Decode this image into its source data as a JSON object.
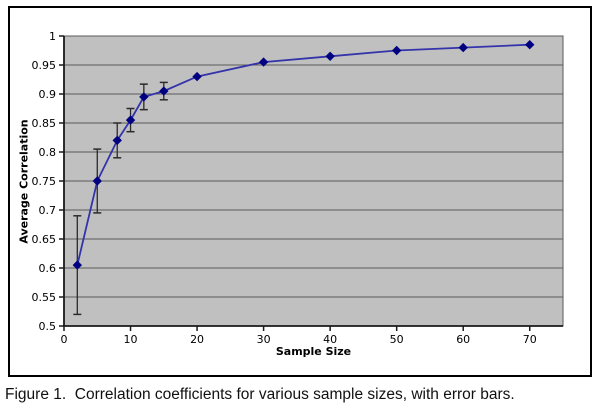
{
  "figure": {
    "caption": "Figure 1.  Correlation coefficients for various sample sizes, with error bars."
  },
  "chart_data": {
    "type": "line",
    "title": "",
    "xlabel": "Sample Size",
    "ylabel": "Average Correlation",
    "xlim": [
      0,
      75
    ],
    "ylim": [
      0.5,
      1.0
    ],
    "x_ticks": [
      0,
      10,
      20,
      30,
      40,
      50,
      60,
      70
    ],
    "y_ticks": [
      0.5,
      0.55,
      0.6,
      0.65,
      0.7,
      0.75,
      0.8,
      0.85,
      0.9,
      0.95,
      1
    ],
    "y_tick_labels": [
      "0.5",
      "0.55",
      "0.6",
      "0.65",
      "0.7",
      "0.75",
      "0.8",
      "0.85",
      "0.9",
      "0.95",
      "1"
    ],
    "grid": "horizontal-major",
    "legend": "none",
    "colors": {
      "plot_bg": "#c0c0c0",
      "grid": "#5a5a5a",
      "axis": "#1a1a1a",
      "line": "#3333aa",
      "marker": "#000080",
      "error_bar": "#2a2a2a"
    },
    "series": [
      {
        "marker": "diamond",
        "x": [
          2,
          5,
          8,
          10,
          12,
          15,
          20,
          30,
          40,
          50,
          60,
          70
        ],
        "y": [
          0.605,
          0.75,
          0.82,
          0.855,
          0.895,
          0.905,
          0.93,
          0.955,
          0.965,
          0.975,
          0.98,
          0.985
        ],
        "y_err": [
          0.085,
          0.055,
          0.03,
          0.02,
          0.022,
          0.015,
          0,
          0,
          0,
          0,
          0,
          0
        ]
      }
    ]
  }
}
